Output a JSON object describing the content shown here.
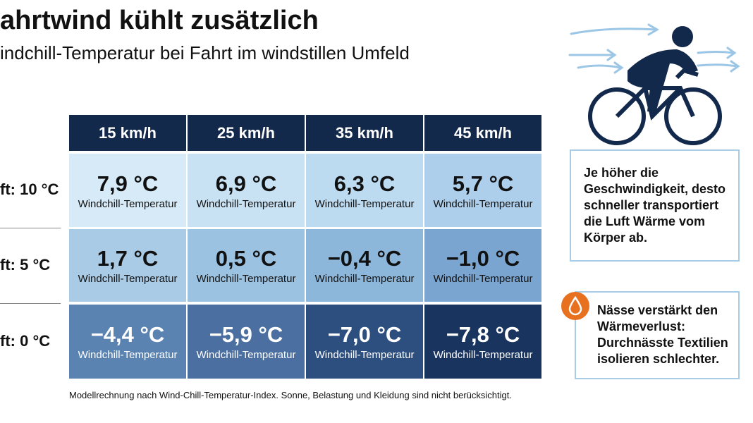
{
  "header": {
    "title": "ahrtwind kühlt zusätzlich",
    "subtitle": "indchill-Temperatur bei Fahrt im windstillen Umfeld"
  },
  "table": {
    "columns": [
      "15 km/h",
      "25 km/h",
      "35 km/h",
      "45 km/h"
    ],
    "rows": [
      {
        "label": "ft: 10 °C",
        "cells": [
          {
            "value": "7,9 °C",
            "caption": "Windchill-Temperatur"
          },
          {
            "value": "6,9 °C",
            "caption": "Windchill-Temperatur"
          },
          {
            "value": "6,3 °C",
            "caption": "Windchill-Temperatur"
          },
          {
            "value": "5,7 °C",
            "caption": "Windchill-Temperatur"
          }
        ]
      },
      {
        "label": "ft: 5 °C",
        "cells": [
          {
            "value": "1,7 °C",
            "caption": "Windchill-Temperatur"
          },
          {
            "value": "0,5 °C",
            "caption": "Windchill-Temperatur"
          },
          {
            "value": "−0,4 °C",
            "caption": "Windchill-Temperatur"
          },
          {
            "value": "−1,0 °C",
            "caption": "Windchill-Temperatur"
          }
        ]
      },
      {
        "label": "ft: 0 °C",
        "cells": [
          {
            "value": "−4,4 °C",
            "caption": "Windchill-Temperatur"
          },
          {
            "value": "−5,9 °C",
            "caption": "Windchill-Temperatur"
          },
          {
            "value": "−7,0 °C",
            "caption": "Windchill-Temperatur"
          },
          {
            "value": "−7,8 °C",
            "caption": "Windchill-Temperatur"
          }
        ]
      }
    ]
  },
  "footnote": "Modellrechnung nach Wind-Chill-Temperatur-Index. Sonne, Belastung und Kleidung sind nicht berücksichtigt.",
  "notes": [
    "Je höher die Geschwindigkeit, desto schneller transportiert die Luft Wärme vom Körper ab.",
    "Nässe verstärkt den Wärmeverlust: Durchnässte Textilien isolieren schlechter."
  ]
}
